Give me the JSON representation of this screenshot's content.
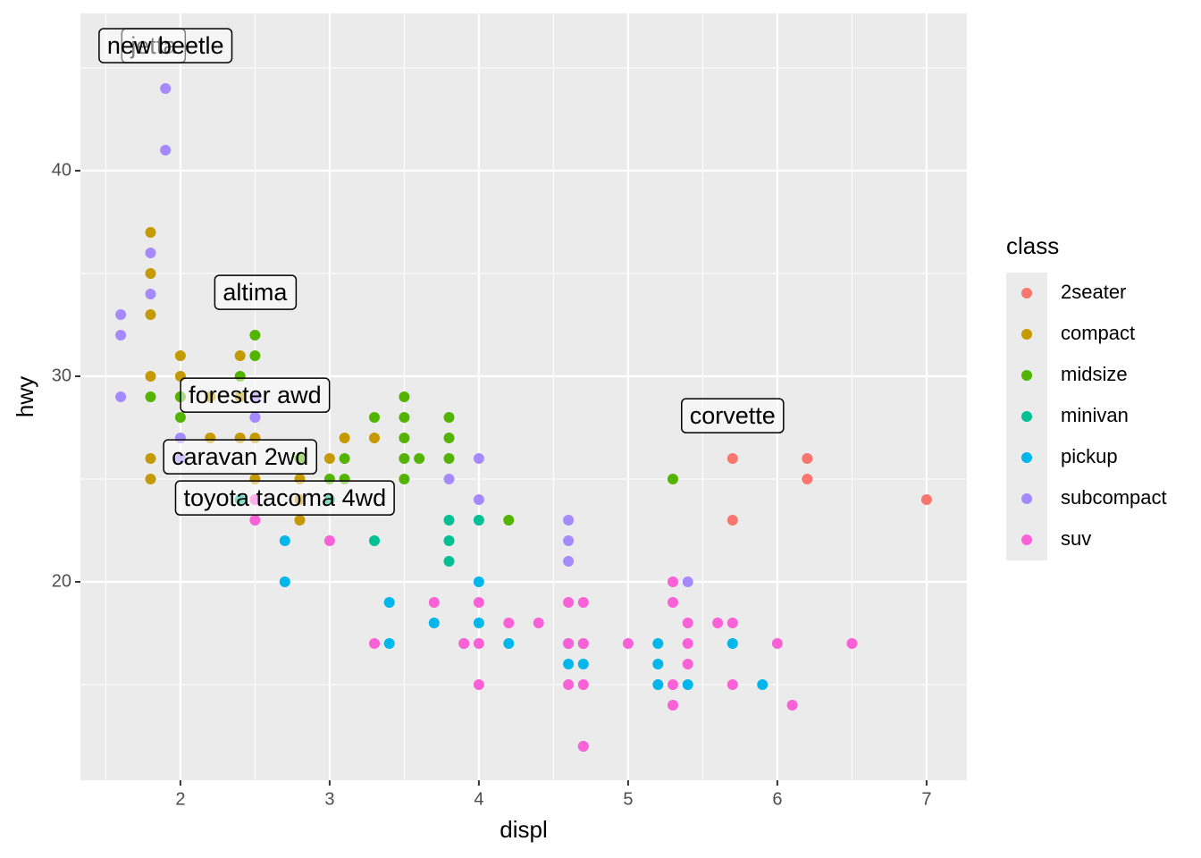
{
  "chart_data": {
    "type": "scatter",
    "x_label": "displ",
    "y_label": "hwy",
    "legend_title": "class",
    "legend_position": "right",
    "xlim": [
      1.33,
      7.27
    ],
    "ylim": [
      10.35,
      47.65
    ],
    "xticks": [
      2,
      3,
      4,
      5,
      6,
      7
    ],
    "yticks": [
      20,
      30,
      40
    ],
    "xminor": [
      1.5,
      2.5,
      3.5,
      4.5,
      5.5,
      6.5
    ],
    "yminor": [
      15,
      25,
      35,
      45
    ],
    "grid": true,
    "series": [
      {
        "name": "2seater",
        "color": "#f8766d",
        "x": [
          5.7,
          5.7,
          6.2,
          6.2,
          7
        ],
        "y": [
          26,
          23,
          26,
          25,
          24
        ]
      },
      {
        "name": "compact",
        "color": "#c49a00",
        "x": [
          1.8,
          1.8,
          1.8,
          1.8,
          1.8,
          1.8,
          2,
          2,
          2,
          2.2,
          2.2,
          2.4,
          2.4,
          2.4,
          2.5,
          2.5,
          2.8,
          2.8,
          2.8,
          3,
          3.1,
          3.3
        ],
        "y": [
          37,
          35,
          33,
          30,
          26,
          25,
          31,
          30,
          29,
          27,
          29,
          31,
          29,
          27,
          27,
          25,
          25,
          24,
          23,
          26,
          27,
          27
        ]
      },
      {
        "name": "midsize",
        "color": "#53b400",
        "x": [
          1.8,
          2,
          2,
          2.4,
          2.5,
          2.5,
          2.8,
          3,
          3.1,
          3.1,
          3.3,
          3.5,
          3.5,
          3.5,
          3.5,
          3.5,
          3.6,
          3.8,
          3.8,
          3.8,
          4.2,
          5.3
        ],
        "y": [
          29,
          29,
          28,
          30,
          32,
          31,
          26,
          25,
          26,
          25,
          28,
          29,
          28,
          27,
          26,
          25,
          26,
          28,
          27,
          26,
          23,
          25
        ]
      },
      {
        "name": "minivan",
        "color": "#00c094",
        "x": [
          2.4,
          3,
          3.3,
          3.8,
          3.8,
          3.8,
          4
        ],
        "y": [
          24,
          24,
          22,
          23,
          22,
          21,
          23
        ]
      },
      {
        "name": "pickup",
        "color": "#00b6eb",
        "x": [
          2.7,
          2.7,
          3.4,
          3.4,
          3.7,
          3.9,
          4,
          4,
          4.2,
          4.6,
          4.6,
          4.7,
          4.7,
          4.7,
          5.2,
          5.2,
          5.2,
          5.4,
          5.7,
          5.9
        ],
        "y": [
          22,
          20,
          19,
          17,
          18,
          17,
          20,
          18,
          17,
          17,
          16,
          17,
          16,
          12,
          17,
          16,
          15,
          15,
          17,
          15
        ]
      },
      {
        "name": "subcompact",
        "color": "#a58aff",
        "x": [
          1.6,
          1.6,
          1.6,
          1.8,
          1.8,
          1.9,
          1.9,
          2,
          2,
          2.5,
          2.5,
          3.8,
          4,
          4,
          4.6,
          4.6,
          4.6,
          5.4
        ],
        "y": [
          33,
          32,
          29,
          36,
          34,
          44,
          41,
          27,
          26,
          28,
          29,
          25,
          26,
          24,
          23,
          22,
          21,
          20
        ]
      },
      {
        "name": "suv",
        "color": "#fb61d7",
        "x": [
          2.5,
          2.5,
          3,
          3.3,
          3.7,
          3.9,
          4,
          4,
          4,
          4.2,
          4.4,
          4.6,
          4.6,
          4.6,
          4.7,
          4.7,
          4.7,
          4.7,
          5,
          5.3,
          5.3,
          5.3,
          5.3,
          5.4,
          5.4,
          5.4,
          5.6,
          5.7,
          5.7,
          6,
          6.1,
          6.5
        ],
        "y": [
          23,
          24,
          22,
          17,
          19,
          17,
          19,
          17,
          15,
          18,
          18,
          19,
          17,
          15,
          19,
          17,
          15,
          12,
          17,
          20,
          19,
          15,
          14,
          18,
          17,
          16,
          18,
          18,
          15,
          17,
          14,
          17
        ]
      }
    ],
    "annotations": [
      {
        "text": "jetta",
        "x": 1.82,
        "y": 46
      },
      {
        "text": "new beetle",
        "x": 1.9,
        "y": 46
      },
      {
        "text": "altima",
        "x": 2.5,
        "y": 34
      },
      {
        "text": "forester awd",
        "x": 2.5,
        "y": 29
      },
      {
        "text": "caravan 2wd",
        "x": 2.4,
        "y": 26
      },
      {
        "text": "toyota tacoma 4wd",
        "x": 2.7,
        "y": 24
      },
      {
        "text": "corvette",
        "x": 5.7,
        "y": 28
      }
    ]
  }
}
